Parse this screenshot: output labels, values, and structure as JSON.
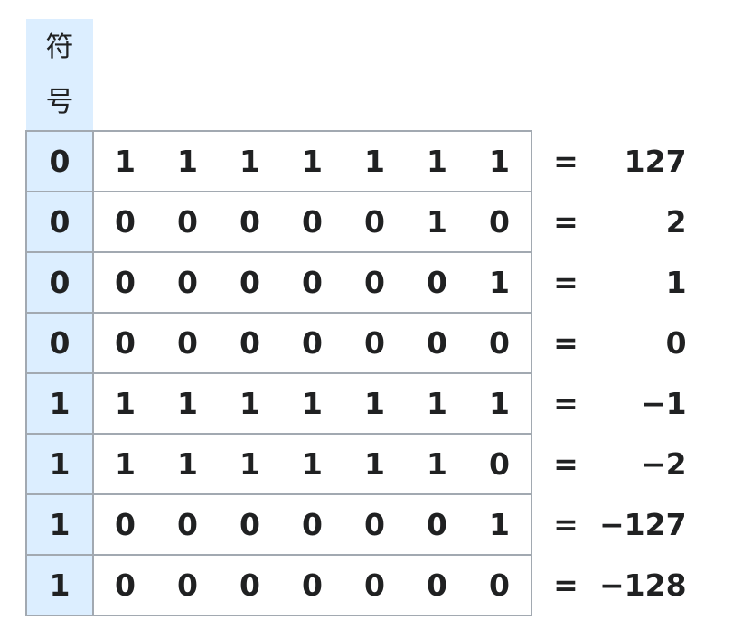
{
  "sign_header": [
    "符",
    "号"
  ],
  "equals": "=",
  "rows": [
    {
      "sign": "0",
      "bits": [
        "1",
        "1",
        "1",
        "1",
        "1",
        "1",
        "1"
      ],
      "value": "127"
    },
    {
      "sign": "0",
      "bits": [
        "0",
        "0",
        "0",
        "0",
        "0",
        "1",
        "0"
      ],
      "value": "2"
    },
    {
      "sign": "0",
      "bits": [
        "0",
        "0",
        "0",
        "0",
        "0",
        "0",
        "1"
      ],
      "value": "1"
    },
    {
      "sign": "0",
      "bits": [
        "0",
        "0",
        "0",
        "0",
        "0",
        "0",
        "0"
      ],
      "value": "0"
    },
    {
      "sign": "1",
      "bits": [
        "1",
        "1",
        "1",
        "1",
        "1",
        "1",
        "1"
      ],
      "value": "−1"
    },
    {
      "sign": "1",
      "bits": [
        "1",
        "1",
        "1",
        "1",
        "1",
        "1",
        "0"
      ],
      "value": "−2"
    },
    {
      "sign": "1",
      "bits": [
        "0",
        "0",
        "0",
        "0",
        "0",
        "0",
        "1"
      ],
      "value": "−127"
    },
    {
      "sign": "1",
      "bits": [
        "0",
        "0",
        "0",
        "0",
        "0",
        "0",
        "0"
      ],
      "value": "−128"
    }
  ]
}
